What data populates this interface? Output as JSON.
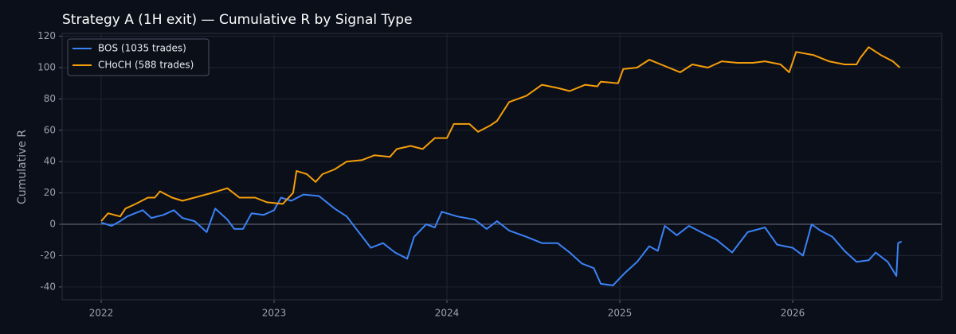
{
  "chart_data": {
    "type": "line",
    "title": "Strategy A (1H exit) — Cumulative R by Signal Type",
    "y_label": "Cumulative R",
    "xlim": [
      2021.774,
      2026.862
    ],
    "xticks": [
      2022,
      2023,
      2024,
      2025,
      2026
    ],
    "ylim": [
      -48.2,
      121.8
    ],
    "yticks": [
      -40,
      -20,
      0,
      20,
      40,
      60,
      80,
      100,
      120
    ],
    "grid": true,
    "legend": "upper-left",
    "series": [
      {
        "name": "BOS (1035 trades)",
        "color": "#3b82f6",
        "x": [
          2022.0,
          2022.06,
          2022.11,
          2022.15,
          2022.24,
          2022.29,
          2022.36,
          2022.42,
          2022.47,
          2022.54,
          2022.59,
          2022.61,
          2022.66,
          2022.73,
          2022.77,
          2022.82,
          2022.87,
          2022.94,
          2023.0,
          2023.04,
          2023.1,
          2023.17,
          2023.26,
          2023.35,
          2023.42,
          2023.49,
          2023.56,
          2023.63,
          2023.7,
          2023.77,
          2023.81,
          2023.88,
          2023.93,
          2023.97,
          2024.06,
          2024.16,
          2024.23,
          2024.29,
          2024.36,
          2024.46,
          2024.55,
          2024.64,
          2024.71,
          2024.78,
          2024.85,
          2024.89,
          2024.96,
          2025.03,
          2025.1,
          2025.17,
          2025.22,
          2025.26,
          2025.33,
          2025.4,
          2025.47,
          2025.56,
          2025.65,
          2025.74,
          2025.84,
          2025.91,
          2026.0,
          2026.06,
          2026.11,
          2026.16,
          2026.23,
          2026.3,
          2026.37,
          2026.44,
          2026.48,
          2026.55,
          2026.6,
          2026.61,
          2026.63
        ],
        "values": [
          1,
          -1,
          2,
          5,
          9,
          4,
          6,
          9,
          4,
          2,
          -3,
          -5,
          10,
          3,
          -3,
          -3,
          7,
          6,
          9,
          17,
          15,
          19,
          18,
          10,
          5,
          -5,
          -15,
          -12,
          -18,
          -22,
          -8,
          0,
          -2,
          8,
          5,
          3,
          -3,
          2,
          -4,
          -8,
          -12,
          -12,
          -18,
          -25,
          -28,
          -38,
          -39,
          -31,
          -24,
          -14,
          -17,
          -1,
          -7,
          -1,
          -5,
          -10,
          -18,
          -5,
          -2,
          -13,
          -15,
          -20,
          0,
          -4,
          -8,
          -17,
          -24,
          -23,
          -18,
          -24,
          -33,
          -12,
          -11
        ]
      },
      {
        "name": "CHoCH (588 trades)",
        "color": "#f59e0b",
        "x": [
          2022.0,
          2022.04,
          2022.11,
          2022.14,
          2022.2,
          2022.27,
          2022.31,
          2022.34,
          2022.41,
          2022.47,
          2022.54,
          2022.64,
          2022.73,
          2022.8,
          2022.89,
          2022.96,
          2023.05,
          2023.11,
          2023.13,
          2023.19,
          2023.24,
          2023.28,
          2023.35,
          2023.42,
          2023.51,
          2023.58,
          2023.67,
          2023.71,
          2023.79,
          2023.86,
          2023.93,
          2024.0,
          2024.04,
          2024.13,
          2024.18,
          2024.25,
          2024.29,
          2024.36,
          2024.46,
          2024.55,
          2024.64,
          2024.71,
          2024.8,
          2024.87,
          2024.89,
          2024.99,
          2025.02,
          2025.1,
          2025.17,
          2025.26,
          2025.35,
          2025.42,
          2025.51,
          2025.59,
          2025.68,
          2025.77,
          2025.84,
          2025.93,
          2025.98,
          2026.02,
          2026.12,
          2026.21,
          2026.3,
          2026.37,
          2026.39,
          2026.44,
          2026.51,
          2026.58,
          2026.62
        ],
        "values": [
          2,
          7,
          5,
          10,
          13,
          17,
          17,
          21,
          17,
          15,
          17,
          20,
          23,
          17,
          17,
          14,
          13,
          20,
          34,
          32,
          27,
          32,
          35,
          40,
          41,
          44,
          43,
          48,
          50,
          48,
          55,
          55,
          64,
          64,
          59,
          63,
          66,
          78,
          82,
          89,
          87,
          85,
          89,
          88,
          91,
          90,
          99,
          100,
          105,
          101,
          97,
          102,
          100,
          104,
          103,
          103,
          104,
          102,
          97,
          110,
          108,
          104,
          102,
          102,
          106,
          113,
          108,
          104,
          100
        ]
      }
    ]
  }
}
